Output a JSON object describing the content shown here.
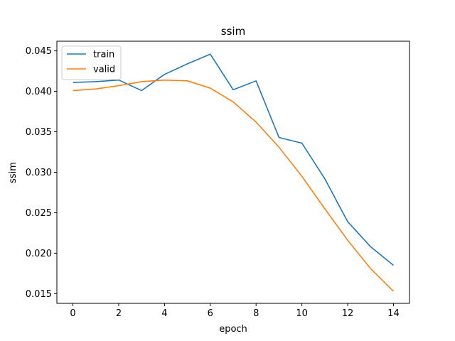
{
  "chart_data": {
    "type": "line",
    "title": "ssim",
    "xlabel": "epoch",
    "ylabel": "ssim",
    "x": [
      0,
      1,
      2,
      3,
      4,
      5,
      6,
      7,
      8,
      9,
      10,
      11,
      12,
      13,
      14
    ],
    "xlim": [
      -0.7,
      14.7
    ],
    "ylim": [
      0.0138,
      0.0462
    ],
    "xticks": [
      0,
      2,
      4,
      6,
      8,
      10,
      12,
      14
    ],
    "xtick_labels": [
      "0",
      "2",
      "4",
      "6",
      "8",
      "10",
      "12",
      "14"
    ],
    "yticks": [
      0.015,
      0.02,
      0.025,
      0.03,
      0.035,
      0.04,
      0.045
    ],
    "ytick_labels": [
      "0.015",
      "0.020",
      "0.025",
      "0.030",
      "0.035",
      "0.040",
      "0.045"
    ],
    "grid": false,
    "legend": {
      "placement": "upper-left"
    },
    "series": [
      {
        "name": "train",
        "color": "#1f77b4",
        "values": [
          0.0411,
          0.0412,
          0.0414,
          0.0401,
          0.0421,
          0.0434,
          0.0446,
          0.0402,
          0.0413,
          0.0343,
          0.0336,
          0.0292,
          0.0239,
          0.0208,
          0.0185
        ]
      },
      {
        "name": "valid",
        "color": "#ff7f0e",
        "values": [
          0.0401,
          0.0403,
          0.0407,
          0.0412,
          0.0414,
          0.0413,
          0.0404,
          0.0387,
          0.0362,
          0.0331,
          0.0295,
          0.0255,
          0.0216,
          0.0181,
          0.0153
        ]
      }
    ]
  }
}
